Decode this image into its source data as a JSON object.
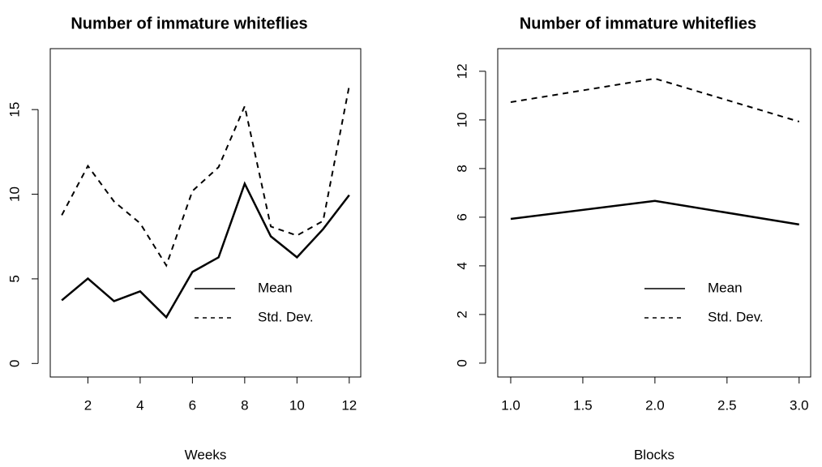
{
  "chart_data": [
    {
      "type": "line",
      "title": "Number of immature whiteflies",
      "xlabel": "Weeks",
      "x": [
        1,
        2,
        3,
        4,
        5,
        6,
        7,
        8,
        9,
        10,
        11,
        12
      ],
      "series": [
        {
          "name": "Mean",
          "color": "#000000",
          "linestyle": "solid",
          "values": [
            3.73,
            5.02,
            3.68,
            4.26,
            2.73,
            5.41,
            6.27,
            10.62,
            7.51,
            6.27,
            7.94,
            9.95
          ]
        },
        {
          "name": "Std. Dev.",
          "color": "#000000",
          "linestyle": "dashed",
          "values": [
            8.76,
            11.67,
            9.57,
            8.28,
            5.79,
            10.19,
            11.6,
            15.2,
            8.09,
            7.56,
            8.42,
            16.4
          ]
        }
      ],
      "xlim": [
        0.56,
        12.44
      ],
      "xticks": [
        2,
        4,
        6,
        8,
        10,
        12
      ],
      "ylim": [
        -0.8,
        18.6
      ],
      "yticks": [
        0,
        5,
        10,
        15
      ],
      "legend": "bottomright"
    },
    {
      "type": "line",
      "title": "Number of immature whiteflies",
      "xlabel": "Blocks",
      "x": [
        1,
        2,
        3
      ],
      "series": [
        {
          "name": "Mean",
          "color": "#000000",
          "linestyle": "solid",
          "values": [
            5.93,
            6.67,
            5.7
          ]
        },
        {
          "name": "Std. Dev.",
          "color": "#000000",
          "linestyle": "dashed",
          "values": [
            10.73,
            11.7,
            9.93
          ]
        }
      ],
      "xlim": [
        0.91,
        3.08
      ],
      "xticks": [
        {
          "value": 1,
          "label": "1.0"
        },
        1.5,
        {
          "value": 2,
          "label": "2.0"
        },
        2.5,
        {
          "value": 3,
          "label": "3.0"
        }
      ],
      "ylim": [
        -0.57,
        12.93
      ],
      "yticks": [
        0,
        2,
        4,
        6,
        8,
        10,
        12
      ],
      "legend": "bottomright"
    }
  ]
}
